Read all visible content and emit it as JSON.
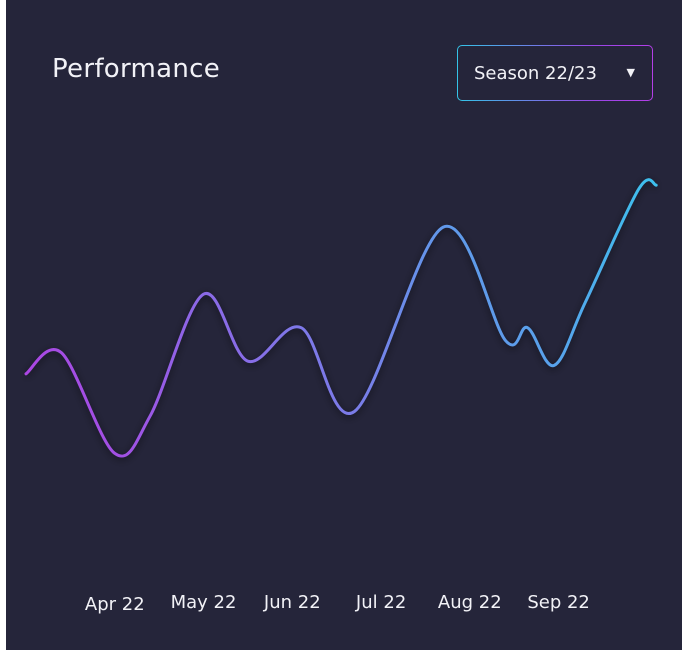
{
  "header": {
    "title": "Performance",
    "dropdown": {
      "selected": "Season 22/23",
      "caret_icon": "caret-down-icon"
    }
  },
  "colors": {
    "background": "#25253a",
    "text": "#f2f2f7",
    "line_gradient_start": "#b13fe3",
    "line_gradient_end": "#38c6ee"
  },
  "chart_data": {
    "type": "line",
    "title": "Performance",
    "xlabel": "",
    "ylabel": "",
    "x_labels": [
      "Apr 22",
      "May 22",
      "Jun 22",
      "Jul 22",
      "Aug 22",
      "Sep 22"
    ],
    "x_range": [
      -1.0,
      6.3
    ],
    "ylim": [
      0,
      10
    ],
    "grid": false,
    "legend": "none",
    "points": [
      {
        "x": -1.0,
        "y": 3.8
      },
      {
        "x": -0.6,
        "y": 4.3
      },
      {
        "x": 0.0,
        "y": 1.9
      },
      {
        "x": 0.4,
        "y": 2.8
      },
      {
        "x": 1.0,
        "y": 5.7
      },
      {
        "x": 1.5,
        "y": 4.1
      },
      {
        "x": 2.1,
        "y": 4.9
      },
      {
        "x": 2.7,
        "y": 2.9
      },
      {
        "x": 3.7,
        "y": 7.3
      },
      {
        "x": 4.4,
        "y": 4.6
      },
      {
        "x": 4.65,
        "y": 4.9
      },
      {
        "x": 4.95,
        "y": 4.0
      },
      {
        "x": 5.3,
        "y": 5.5
      },
      {
        "x": 5.9,
        "y": 8.2
      },
      {
        "x": 6.1,
        "y": 8.3
      }
    ]
  }
}
